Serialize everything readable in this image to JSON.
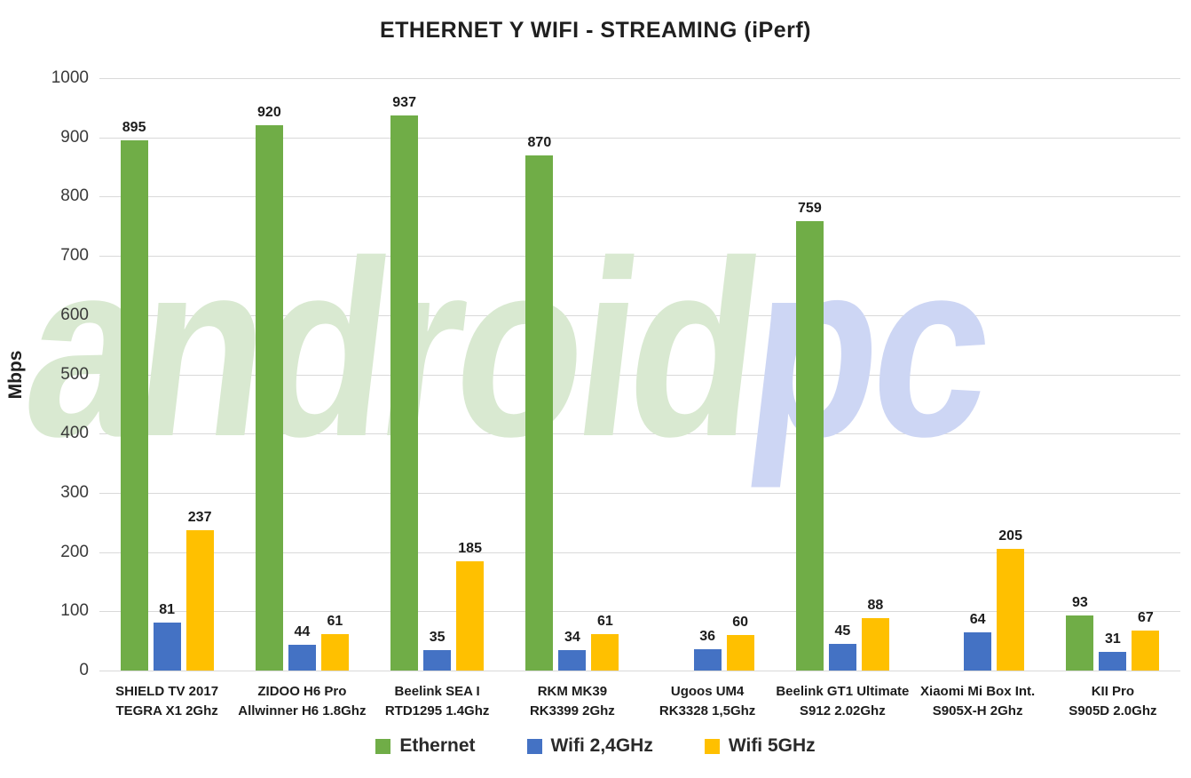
{
  "chart_data": {
    "type": "bar",
    "title": "ETHERNET Y WIFI - STREAMING (iPerf)",
    "xlabel": "",
    "ylabel": "Mbps",
    "ylim": [
      0,
      1000
    ],
    "ytick_step": 100,
    "grid": true,
    "legend_position": "bottom",
    "categories": [
      [
        "SHIELD TV 2017",
        "TEGRA X1 2Ghz"
      ],
      [
        "ZIDOO H6 Pro",
        "Allwinner H6 1.8Ghz"
      ],
      [
        "Beelink SEA I",
        "RTD1295 1.4Ghz"
      ],
      [
        "RKM MK39",
        "RK3399 2Ghz"
      ],
      [
        "Ugoos UM4",
        "RK3328 1,5Ghz"
      ],
      [
        "Beelink GT1 Ultimate",
        "S912 2.02Ghz"
      ],
      [
        "Xiaomi Mi Box Int.",
        "S905X-H 2Ghz"
      ],
      [
        "KII Pro",
        "S905D 2.0Ghz"
      ]
    ],
    "series": [
      {
        "name": "Ethernet",
        "color": "#70AD47",
        "values": [
          895,
          920,
          937,
          870,
          null,
          759,
          null,
          93
        ]
      },
      {
        "name": "Wifi 2,4GHz",
        "color": "#4472C4",
        "values": [
          81,
          44,
          35,
          34,
          36,
          45,
          64,
          31
        ]
      },
      {
        "name": "Wifi 5GHz",
        "color": "#FFC000",
        "values": [
          237,
          61,
          185,
          61,
          60,
          88,
          205,
          67
        ]
      }
    ]
  },
  "watermark": {
    "part1": "android",
    "part2": "pc",
    "color1": "#d9e9d1",
    "color2": "#cdd6f4"
  },
  "colors": {
    "gridline": "#d9d9d9",
    "text_dark": "#1c1c1c",
    "axis_text": "#3a3a3a"
  }
}
